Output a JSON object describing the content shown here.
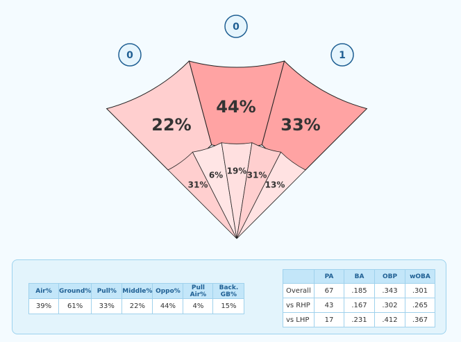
{
  "chart_data": {
    "type": "spray",
    "outfield": {
      "hit_counts": [
        "0",
        "0",
        "1"
      ],
      "percent_labels": [
        "22%",
        "44%",
        "33%"
      ],
      "values": [
        22,
        44,
        33
      ],
      "colors": [
        "#ffcfcf",
        "#ffa3a3",
        "#ffa3a3"
      ]
    },
    "infield": {
      "percent_labels": [
        "31%",
        "6%",
        "19%",
        "31%",
        "13%"
      ],
      "values": [
        31,
        6,
        19,
        31,
        13
      ],
      "colors": [
        "#ffcfcf",
        "#ffe5e5",
        "#ffe0e0",
        "#ffcfcf",
        "#ffe2e2"
      ]
    }
  },
  "batted_ball": {
    "headers": [
      "Air%",
      "Ground%",
      "Pull%",
      "Middle%",
      "Oppo%",
      "Pull Air%",
      "Back. GB%"
    ],
    "values": [
      "39%",
      "61%",
      "33%",
      "22%",
      "44%",
      "4%",
      "15%"
    ]
  },
  "splits": {
    "headers": [
      "",
      "PA",
      "BA",
      "OBP",
      "wOBA"
    ],
    "rows": [
      [
        "Overall",
        "67",
        ".185",
        ".343",
        ".301"
      ],
      [
        "vs RHP",
        "43",
        ".167",
        ".302",
        ".265"
      ],
      [
        "vs LHP",
        "17",
        ".231",
        ".412",
        ".367"
      ]
    ]
  }
}
